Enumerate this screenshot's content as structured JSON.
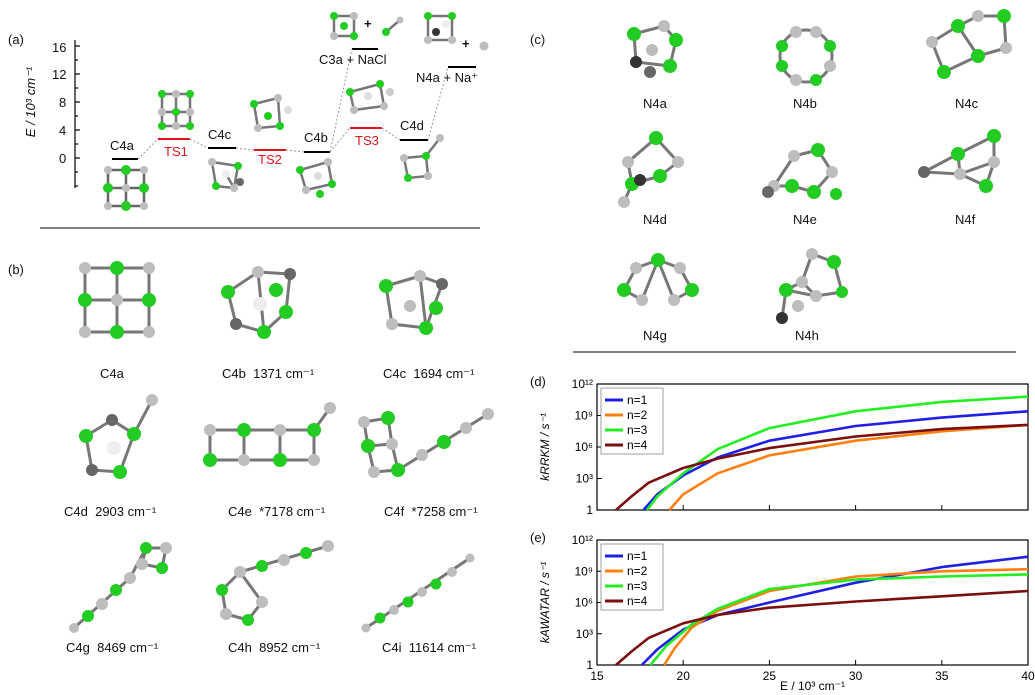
{
  "panels": {
    "a": "(a)",
    "b": "(b)",
    "c": "(c)",
    "d": "(d)",
    "e": "(e)"
  },
  "energy_diagram": {
    "ylabel": "E / 10³ cm⁻¹",
    "yticks": [
      "16",
      "12",
      "8",
      "4",
      "0"
    ],
    "species": [
      "C4a",
      "C4c",
      "C4b",
      "C4d"
    ],
    "transition_states": [
      "TS1",
      "TS2",
      "TS3"
    ],
    "products": [
      "C3a + NaCl",
      "N4a + Na⁺"
    ],
    "plus": "+",
    "colors": {
      "ts": "#e0141b",
      "cl": "#22cc22",
      "na": "#bdbdbd"
    }
  },
  "c4_isomers": [
    {
      "name": "C4a",
      "freq": ""
    },
    {
      "name": "C4b",
      "freq": "1371 cm⁻¹"
    },
    {
      "name": "C4c",
      "freq": "1694 cm⁻¹"
    },
    {
      "name": "C4d",
      "freq": "2903 cm⁻¹"
    },
    {
      "name": "C4e",
      "freq": "*7178 cm⁻¹"
    },
    {
      "name": "C4f",
      "freq": "*7258 cm⁻¹"
    },
    {
      "name": "C4g",
      "freq": "8469 cm⁻¹"
    },
    {
      "name": "C4h",
      "freq": "8952 cm⁻¹"
    },
    {
      "name": "C4i",
      "freq": "11614 cm⁻¹"
    }
  ],
  "n4_isomers": [
    "N4a",
    "N4b",
    "N4c",
    "N4d",
    "N4e",
    "N4f",
    "N4g",
    "N4h"
  ],
  "rate_plots": {
    "xlabel": "E / 10³ cm⁻¹",
    "xticks": [
      "15",
      "20",
      "25",
      "30",
      "35",
      "40"
    ],
    "yticks": [
      "10¹²",
      "10⁹",
      "10⁶",
      "10³",
      "1"
    ],
    "d_ylabel": "kRRKM / s⁻¹",
    "e_ylabel": "kAWATAR / s⁻¹",
    "legend": [
      "n=1",
      "n=2",
      "n=3",
      "n=4"
    ],
    "colors": [
      "#1f1fe6",
      "#ff7f0e",
      "#22ee22",
      "#7a0f0f"
    ]
  },
  "chart_data": [
    {
      "type": "line",
      "panel": "d",
      "xlabel": "E / 10³ cm⁻¹",
      "ylabel": "kRRKM / s⁻¹",
      "xlim": [
        15,
        40
      ],
      "ylim_log10": [
        0,
        12
      ],
      "series": [
        {
          "name": "n=1",
          "x": [
            17.7,
            18.5,
            20,
            22,
            25,
            30,
            35,
            40
          ],
          "log10_y": [
            0,
            1.5,
            3.3,
            5.0,
            6.6,
            8.0,
            8.8,
            9.4
          ]
        },
        {
          "name": "n=2",
          "x": [
            19.2,
            20,
            22,
            25,
            30,
            35,
            40
          ],
          "log10_y": [
            0,
            1.5,
            3.5,
            5.2,
            6.6,
            7.5,
            8.1
          ]
        },
        {
          "name": "n=3",
          "x": [
            17.9,
            18.5,
            20,
            22,
            25,
            30,
            35,
            40
          ],
          "log10_y": [
            0,
            1.3,
            3.5,
            5.8,
            7.8,
            9.4,
            10.3,
            10.8
          ]
        },
        {
          "name": "n=4",
          "x": [
            16.1,
            17,
            18,
            20,
            22,
            25,
            30,
            35,
            40
          ],
          "log10_y": [
            0,
            1.3,
            2.6,
            4.0,
            4.9,
            5.9,
            7.0,
            7.7,
            8.1
          ]
        }
      ]
    },
    {
      "type": "line",
      "panel": "e",
      "xlabel": "E / 10³ cm⁻¹",
      "ylabel": "kAWATAR / s⁻¹",
      "xlim": [
        15,
        40
      ],
      "ylim_log10": [
        0,
        12
      ],
      "series": [
        {
          "name": "n=1",
          "x": [
            17.6,
            18.5,
            20,
            22,
            25,
            30,
            35,
            40
          ],
          "log10_y": [
            0,
            1.5,
            3.4,
            4.8,
            6.0,
            7.9,
            9.4,
            10.4
          ]
        },
        {
          "name": "n=2",
          "x": [
            18.9,
            19.5,
            20.5,
            22,
            25,
            30,
            35,
            40
          ],
          "log10_y": [
            0,
            1.6,
            3.6,
            5.2,
            7.1,
            8.5,
            9.0,
            9.2
          ]
        },
        {
          "name": "n=3",
          "x": [
            18.1,
            19,
            20.5,
            22,
            25,
            30,
            35,
            40
          ],
          "log10_y": [
            0,
            1.8,
            3.9,
            5.4,
            7.3,
            8.2,
            8.5,
            8.7
          ]
        },
        {
          "name": "n=4",
          "x": [
            16.1,
            17,
            18,
            20,
            22,
            25,
            30,
            35,
            40
          ],
          "log10_y": [
            0,
            1.3,
            2.6,
            4.0,
            4.8,
            5.5,
            6.1,
            6.6,
            7.1
          ]
        }
      ]
    }
  ]
}
